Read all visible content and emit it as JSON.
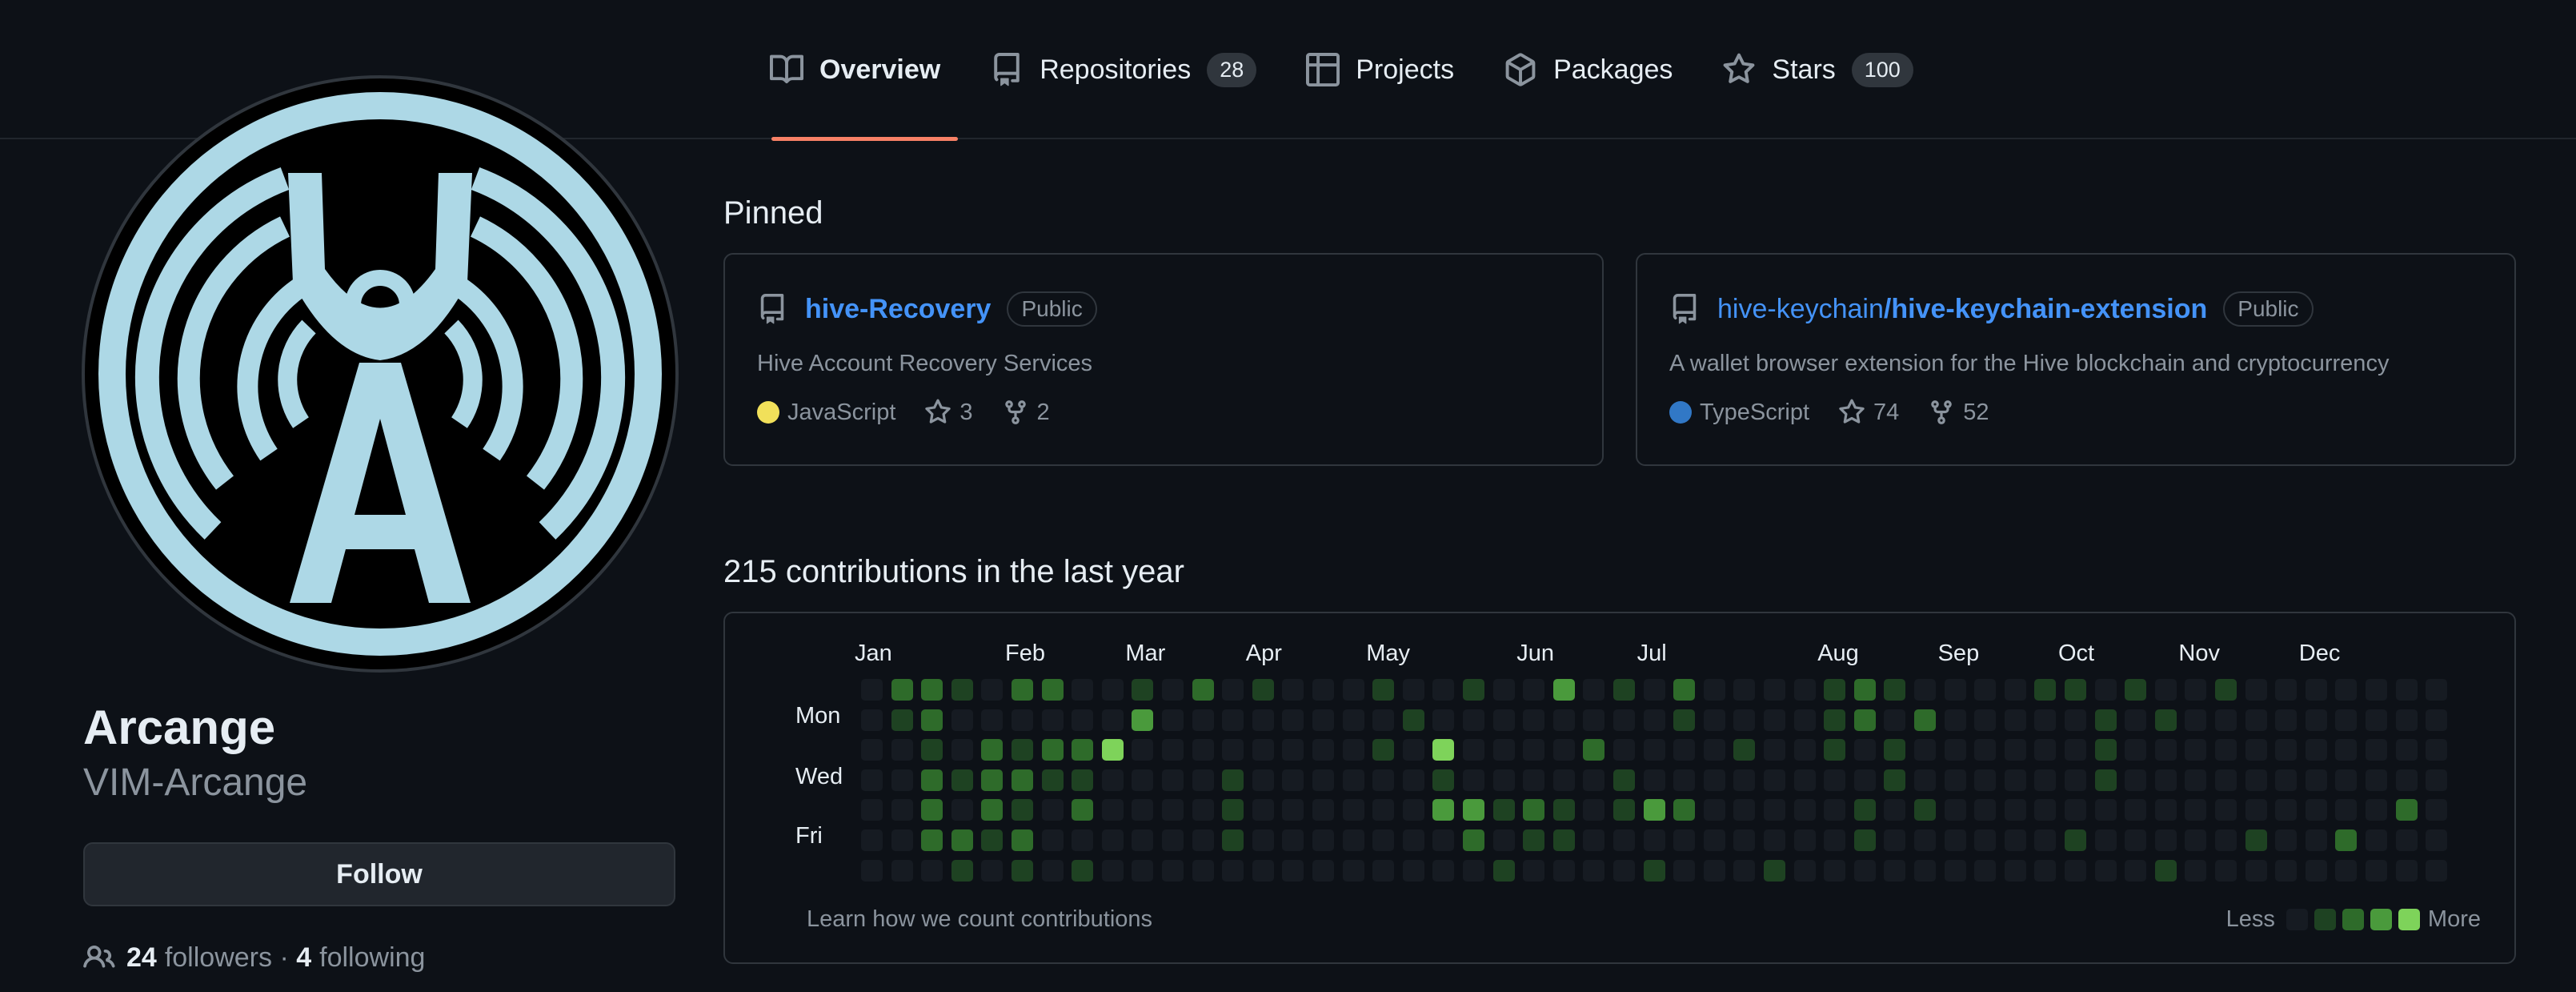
{
  "nav": {
    "tabs": [
      {
        "label": "Overview",
        "icon": "book-icon",
        "active": true
      },
      {
        "label": "Repositories",
        "icon": "repo-icon",
        "count": "28"
      },
      {
        "label": "Projects",
        "icon": "table-icon"
      },
      {
        "label": "Packages",
        "icon": "package-icon"
      },
      {
        "label": "Stars",
        "icon": "star-icon",
        "count": "100"
      }
    ]
  },
  "profile": {
    "name": "Arcange",
    "login": "VIM-Arcange",
    "follow_label": "Follow",
    "followers_count": "24",
    "followers_label": "followers",
    "separator": " · ",
    "following_count": "4",
    "following_label": "following"
  },
  "pinned": {
    "title": "Pinned",
    "repos": [
      {
        "owner": "",
        "name": "hive-Recovery",
        "visibility": "Public",
        "description": "Hive Account Recovery Services",
        "language": "JavaScript",
        "language_color": "#f1e05a",
        "stars": "3",
        "forks": "2"
      },
      {
        "owner": "hive-keychain",
        "name": "/hive-keychain-extension",
        "visibility": "Public",
        "description": "A wallet browser extension for the Hive blockchain and cryptocurrency",
        "language": "TypeScript",
        "language_color": "#3178c6",
        "stars": "74",
        "forks": "52"
      }
    ]
  },
  "contributions": {
    "title": "215 contributions in the last year",
    "months": [
      "Jan",
      "Feb",
      "Mar",
      "Apr",
      "May",
      "Jun",
      "Jul",
      "Aug",
      "Sep",
      "Oct",
      "Nov",
      "Dec"
    ],
    "day_labels": [
      "Mon",
      "Wed",
      "Fri"
    ],
    "learn_label": "Learn how we count contributions",
    "less_label": "Less",
    "more_label": "More",
    "level_colors": [
      "#161b22",
      "#0e4429",
      "#006d32",
      "#26a641",
      "#39d353"
    ],
    "display_colors": [
      "#161b22",
      "#1e4222",
      "#2e6b2a",
      "#4a9a3c",
      "#7ed35a"
    ]
  }
}
